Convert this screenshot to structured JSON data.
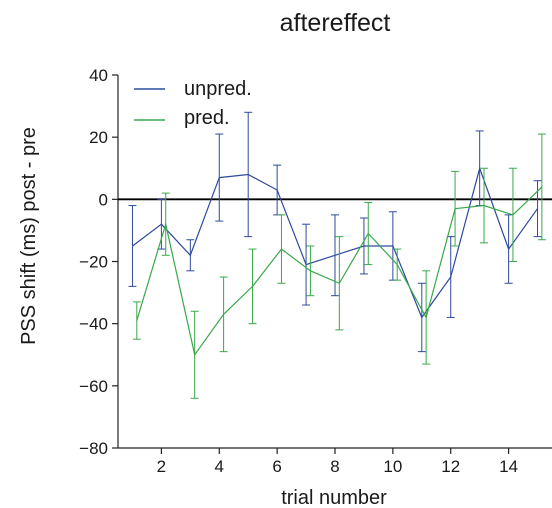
{
  "chart_data": {
    "type": "line",
    "title": "aftereffect",
    "xlabel": "trial number",
    "ylabel": "PSS shift (ms) post - pre",
    "xlim": [
      0.5,
      15.5
    ],
    "ylim": [
      -80,
      40
    ],
    "xticks": [
      2,
      4,
      6,
      8,
      10,
      12,
      14
    ],
    "yticks": [
      -80,
      -60,
      -40,
      -20,
      0,
      20,
      40
    ],
    "zero_line": 0,
    "legend_position": "top-left",
    "grid": false,
    "series": [
      {
        "name": "unpred.",
        "color": "#2e4a9e",
        "x": [
          1,
          2,
          3,
          4,
          5,
          6,
          7,
          8,
          9,
          10,
          11,
          12,
          13,
          14,
          15
        ],
        "y": [
          -15,
          -8,
          -18,
          7,
          8,
          3,
          -21,
          -18,
          -15,
          -15,
          -38,
          -25,
          10,
          -16,
          -3
        ],
        "err": [
          13,
          8,
          5,
          14,
          20,
          8,
          13,
          13,
          9,
          11,
          11,
          13,
          12,
          11,
          9
        ]
      },
      {
        "name": "pred.",
        "color": "#3aa84a",
        "x": [
          1.15,
          2.15,
          3.15,
          4.15,
          5.15,
          6.15,
          7.15,
          8.15,
          9.15,
          10.15,
          11.15,
          12.15,
          13.15,
          14.15,
          15.15
        ],
        "y": [
          -39,
          -8,
          -50,
          -37,
          -28,
          -16,
          -23,
          -27,
          -11,
          -21,
          -38,
          -3,
          -2,
          -5,
          4
        ],
        "err": [
          6,
          10,
          14,
          12,
          12,
          11,
          8,
          15,
          10,
          5,
          15,
          12,
          12,
          15,
          17
        ]
      }
    ]
  }
}
